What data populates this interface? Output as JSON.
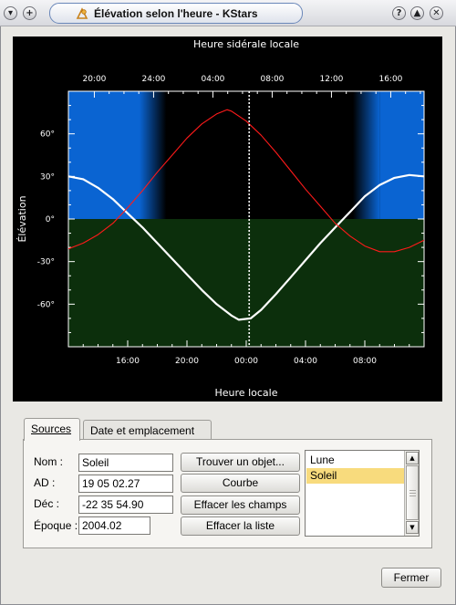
{
  "window": {
    "title": "Élévation selon l'heure - KStars"
  },
  "plot": {
    "title_top": "Heure sidérale locale",
    "title_bottom": "Heure locale",
    "ylabel": "Élévation",
    "colors": {
      "day_sky": "#0a64d2",
      "night_sky": "#000000",
      "ground": "#0c2f0c",
      "sun_curve": "#ffffff",
      "moon_curve": "#ff1a1a",
      "now_marker": "#ffffff"
    }
  },
  "chart_data": {
    "type": "line",
    "title": "",
    "xlabel": "Heure locale",
    "x2label": "Heure sidérale locale",
    "ylabel": "Élévation",
    "xlim": [
      12,
      36
    ],
    "ylim": [
      -90,
      90
    ],
    "bottom_ticks": [
      "16:00",
      "20:00",
      "00:00",
      "04:00",
      "08:00"
    ],
    "bottom_tick_hours": [
      16,
      20,
      24,
      28,
      32
    ],
    "top_ticks": [
      "20:00",
      "24:00",
      "04:00",
      "08:00",
      "12:00",
      "16:00"
    ],
    "top_tick_hours": [
      13.75,
      17.75,
      21.75,
      25.75,
      29.75,
      33.75
    ],
    "y_ticks": [
      "60°",
      "30°",
      "0°",
      "-30°",
      "-60°"
    ],
    "y_tick_values": [
      60,
      30,
      0,
      -30,
      -60
    ],
    "now_hour": 24.2,
    "series": [
      {
        "name": "Soleil",
        "x": [
          12,
          13,
          14,
          15,
          16,
          17,
          18,
          19,
          20,
          21,
          22,
          23,
          23.5,
          24.3,
          25,
          26,
          27,
          28,
          29,
          30,
          31,
          32,
          33,
          34,
          35,
          36
        ],
        "y": [
          30,
          28,
          22,
          14,
          4,
          -6,
          -17,
          -28,
          -39,
          -50,
          -60,
          -68,
          -71,
          -70,
          -64,
          -53,
          -41,
          -29,
          -17,
          -6,
          5,
          16,
          24,
          29,
          31,
          30
        ]
      },
      {
        "name": "Lune",
        "x": [
          12,
          13,
          14,
          15,
          16,
          17,
          18,
          19,
          20,
          21,
          22,
          22.7,
          23,
          24,
          25,
          26,
          27,
          28,
          29,
          30,
          31,
          32,
          33,
          34,
          35,
          36
        ],
        "y": [
          -21,
          -17,
          -11,
          -3,
          8,
          20,
          33,
          45,
          57,
          67,
          74,
          77,
          76,
          69,
          59,
          47,
          34,
          21,
          9,
          -3,
          -12,
          -19,
          -23,
          -23,
          -20,
          -15
        ]
      }
    ]
  },
  "tabs": {
    "sources": "Sources",
    "location": "Date et emplacement"
  },
  "form": {
    "name_label": "Nom :",
    "name_value": "Soleil",
    "ra_label": "AD :",
    "ra_value": "19 05 02.27",
    "dec_label": "Déc :",
    "dec_value": "-22 35 54.90",
    "epoch_label": "Époque :",
    "epoch_value": "2004.02"
  },
  "buttons": {
    "find_object": "Trouver un objet...",
    "plot": "Courbe",
    "clear_fields": "Effacer les champs",
    "clear_list": "Effacer la liste",
    "close": "Fermer"
  },
  "source_list": {
    "items": [
      "Lune",
      "Soleil"
    ],
    "selected": "Soleil"
  }
}
